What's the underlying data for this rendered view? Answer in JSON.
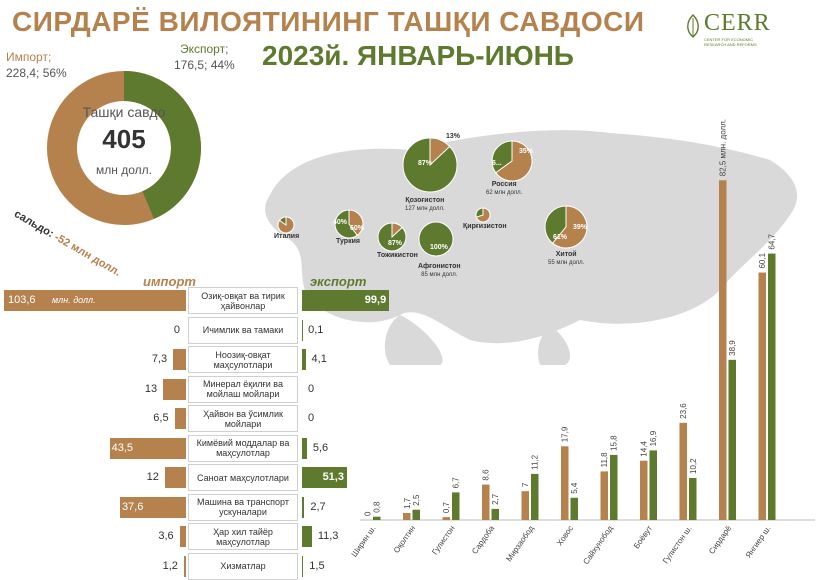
{
  "header": {
    "title_line1": "СИРДАРЁ ВИЛОЯТИНИНГ ТАШҚИ САВДОСИ",
    "title_line2": "2023й. ЯНВАРЬ-ИЮНЬ",
    "logo_text": "CERR",
    "logo_sub": "CENTER FOR ECONOMIC RESEARCH AND REFORMS"
  },
  "colors": {
    "import": "#b5824e",
    "export": "#5d7a2e",
    "gray": "#d9d9d9"
  },
  "donut": {
    "import_label": "Импорт;",
    "import_value": "228,4; 56%",
    "export_label": "Экспорт;",
    "export_value": "176,5; 44%",
    "center_title": "Ташқи савдо",
    "center_value": "405",
    "center_unit": "млн долл.",
    "saldo_prefix": "сальдо:",
    "saldo_value": " -52 млн долл."
  },
  "legend": {
    "import": "импорт",
    "export": "экспорт"
  },
  "map": {
    "countries": [
      {
        "name": "Қозоғистон",
        "volume": "127 млн долл.",
        "import_pct": 13,
        "export_pct": 87,
        "pct_export_label": "87%",
        "pct_import_label": "13%"
      },
      {
        "name": "Россия",
        "volume": "62 млн долл.",
        "import_pct": 65,
        "export_pct": 35,
        "pct_export_label": "35%",
        "pct_import_label": "6..."
      },
      {
        "name": "Хитой",
        "volume": "55 млн долл.",
        "import_pct": 61,
        "export_pct": 39,
        "pct_export_label": "39%",
        "pct_import_label": "61%"
      },
      {
        "name": "Афғонистон",
        "volume": "85 млн долл.",
        "import_pct": 0,
        "export_pct": 100,
        "pct_export_label": "100%",
        "pct_import_label": ""
      },
      {
        "name": "Тожикистон",
        "volume": "",
        "import_pct": 13,
        "export_pct": 87,
        "pct_export_label": "87%",
        "pct_import_label": ""
      },
      {
        "name": "Туркия",
        "volume": "",
        "import_pct": 40,
        "export_pct": 60,
        "pct_export_label": "60%",
        "pct_import_label": "40%"
      },
      {
        "name": "Қирғизистон",
        "volume": "",
        "import_pct": 70,
        "export_pct": 30,
        "pct_export_label": "",
        "pct_import_label": ""
      },
      {
        "name": "Италия",
        "volume": "",
        "import_pct": 85,
        "export_pct": 15,
        "pct_export_label": "",
        "pct_import_label": ""
      }
    ]
  },
  "chart_data": [
    {
      "type": "bar",
      "orientation": "horizontal-butterfly",
      "unit_label": "млн. долл.",
      "categories": [
        "Озиқ-овқат ва тирик ҳайвонлар",
        "Ичимлик ва тамаки",
        "Ноозиқ-овқат маҳсулотлари",
        "Минерал ёқилғи ва мойлаш мойлари",
        "Ҳайвон ва ўсимлик мойлари",
        "Кимёвий моддалар ва маҳсулотлар",
        "Саноат маҳсулотлари",
        "Машина ва транспорт ускуналари",
        "Ҳар хил тайёр маҳсулотлар",
        "Хизматлар"
      ],
      "series": [
        {
          "name": "импорт",
          "values": [
            103.6,
            0,
            7.3,
            13,
            6.5,
            43.5,
            12,
            37.6,
            3.6,
            1.2
          ],
          "labels": [
            "103,6",
            "0",
            "7,3",
            "13",
            "6,5",
            "43,5",
            "12",
            "37,6",
            "3,6",
            "1,2"
          ]
        },
        {
          "name": "экспорт",
          "values": [
            99.9,
            0.1,
            4.1,
            0,
            0,
            5.6,
            51.3,
            2.7,
            11.3,
            1.5
          ],
          "labels": [
            "99,9",
            "0,1",
            "4,1",
            "0",
            "0",
            "5,6",
            "51,3",
            "2,7",
            "11,3",
            "1,5"
          ]
        }
      ]
    },
    {
      "type": "bar",
      "categories": [
        "Ширин ш.",
        "Оқолтин",
        "Гулистон",
        "Сардоба",
        "Мирзаобод",
        "Ховос",
        "Сайхунобод",
        "Боёвут",
        "Гулистон ш.",
        "Сирдарё",
        "Янгиер ш."
      ],
      "series": [
        {
          "name": "импорт",
          "values": [
            0,
            1.7,
            0.7,
            8.6,
            7,
            17.9,
            11.8,
            14.4,
            23.6,
            82.5,
            60.1
          ],
          "labels": [
            "0",
            "1,7",
            "0,7",
            "8,6",
            "7",
            "17,9",
            "11,8",
            "14,4",
            "23,6",
            "82,5 млн. долл.",
            "60,1"
          ]
        },
        {
          "name": "экспорт",
          "values": [
            0.8,
            2.5,
            6.7,
            2.7,
            11.2,
            5.4,
            15.8,
            16.9,
            10.2,
            38.9,
            64.7
          ],
          "labels": [
            "0,8",
            "2,5",
            "6,7",
            "2,7",
            "11,2",
            "5,4",
            "15,8",
            "16,9",
            "10,2",
            "38,9",
            "64,7"
          ]
        }
      ],
      "ylim": [
        0,
        85
      ]
    }
  ]
}
